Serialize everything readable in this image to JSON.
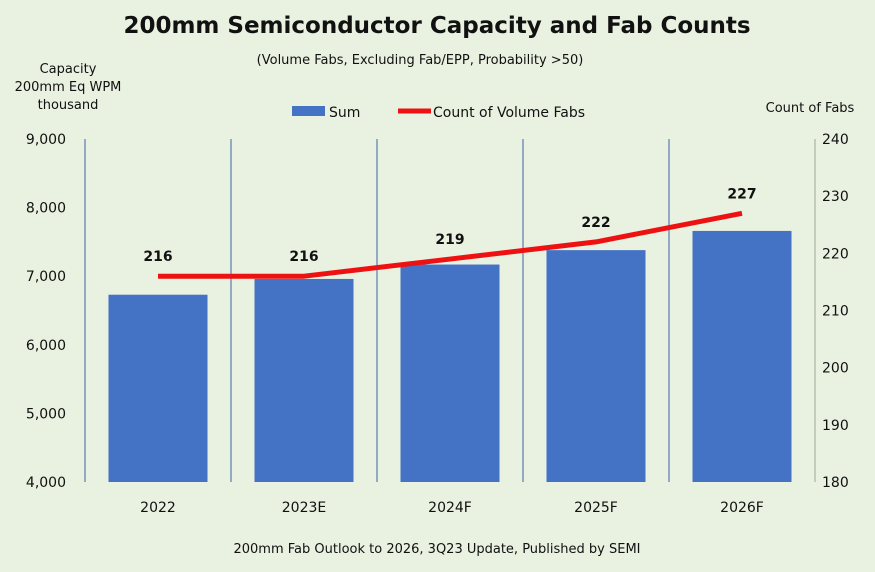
{
  "title": "200mm Semiconductor Capacity and Fab Counts",
  "subtitle": "(Volume Fabs, Excluding Fab/EPP, Probability >50)",
  "left_axis_title": [
    "Capacity",
    "200mm Eq WPM",
    "thousand"
  ],
  "right_axis_title": "Count of Fabs",
  "footer": "200mm Fab Outlook to 2026, 3Q23 Update, Published by SEMI",
  "colors": {
    "background": "#e9f1e1",
    "bar": "#4472c4",
    "line": "#ee1111",
    "separator": "#3a64a8"
  },
  "chart_data": {
    "type": "bar+line",
    "categories": [
      "2022",
      "2023E",
      "2024F",
      "2025F",
      "2026F"
    ],
    "series": [
      {
        "name": "Sum",
        "type": "bar",
        "axis": "left",
        "values": [
          6730,
          6960,
          7170,
          7380,
          7660
        ]
      },
      {
        "name": "Count of Volume Fabs",
        "type": "line",
        "axis": "right",
        "values": [
          216,
          216,
          219,
          222,
          227
        ],
        "labels": [
          "216",
          "216",
          "219",
          "222",
          "227"
        ]
      }
    ],
    "left_axis": {
      "min": 4000,
      "max": 9000,
      "step": 1000,
      "ticks": [
        "4,000",
        "5,000",
        "6,000",
        "7,000",
        "8,000",
        "9,000"
      ]
    },
    "right_axis": {
      "min": 180,
      "max": 240,
      "step": 10,
      "ticks": [
        "180",
        "190",
        "200",
        "210",
        "220",
        "230",
        "240"
      ]
    },
    "legend": {
      "placement": "top-center",
      "entries": [
        "Sum",
        "Count of Volume Fabs"
      ]
    },
    "grid": false
  }
}
